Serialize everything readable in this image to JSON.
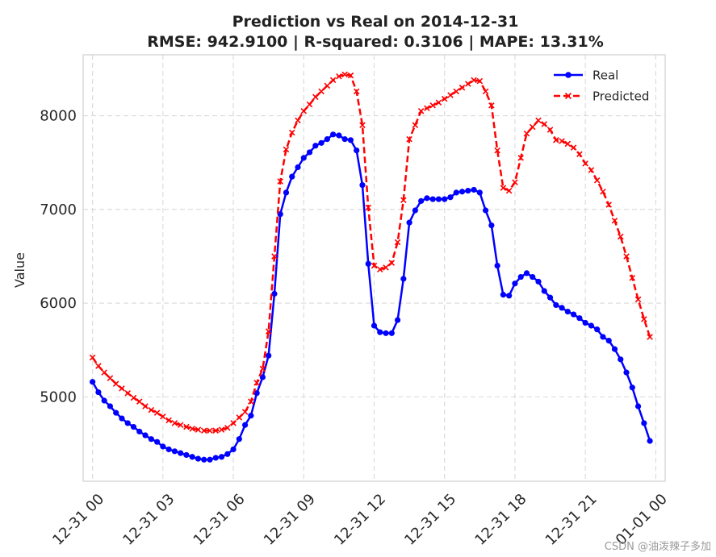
{
  "chart_data": {
    "type": "line",
    "title": "Prediction vs Real on 2014-12-31",
    "subtitle": "RMSE: 942.9100 | R-squared: 0.3106 | MAPE: 13.31%",
    "xlabel": "",
    "ylabel": "Value",
    "xlim": [
      -0.4,
      24.4
    ],
    "ylim": [
      4100,
      8650
    ],
    "x_ticks": [
      0,
      3,
      6,
      9,
      12,
      15,
      18,
      21,
      24
    ],
    "x_tick_labels": [
      "12-31 00",
      "12-31 03",
      "12-31 06",
      "12-31 09",
      "12-31 12",
      "12-31 15",
      "12-31 18",
      "12-31 21",
      "01-01 00"
    ],
    "y_ticks": [
      5000,
      6000,
      7000,
      8000
    ],
    "y_tick_labels": [
      "5000",
      "6000",
      "7000",
      "8000"
    ],
    "grid": true,
    "legend_position": "top-right",
    "x": [
      0,
      0.25,
      0.5,
      0.75,
      1,
      1.25,
      1.5,
      1.75,
      2,
      2.25,
      2.5,
      2.75,
      3,
      3.25,
      3.5,
      3.75,
      4,
      4.25,
      4.5,
      4.75,
      5,
      5.25,
      5.5,
      5.75,
      6,
      6.25,
      6.5,
      6.75,
      7,
      7.25,
      7.5,
      7.75,
      8,
      8.25,
      8.5,
      8.75,
      9,
      9.25,
      9.5,
      9.75,
      10,
      10.25,
      10.5,
      10.75,
      11,
      11.25,
      11.5,
      11.75,
      12,
      12.25,
      12.5,
      12.75,
      13,
      13.25,
      13.5,
      13.75,
      14,
      14.25,
      14.5,
      14.75,
      15,
      15.25,
      15.5,
      15.75,
      16,
      16.25,
      16.5,
      16.75,
      17,
      17.25,
      17.5,
      17.75,
      18,
      18.25,
      18.5,
      18.75,
      19,
      19.25,
      19.5,
      19.75,
      20,
      20.25,
      20.5,
      20.75,
      21,
      21.25,
      21.5,
      21.75,
      22,
      22.25,
      22.5,
      22.75,
      23,
      23.25,
      23.5,
      23.75
    ],
    "series": [
      {
        "name": "Real",
        "color": "#0000ff",
        "marker": "circle",
        "line_style": "solid",
        "values": [
          5160,
          5050,
          4960,
          4900,
          4830,
          4770,
          4720,
          4680,
          4630,
          4590,
          4550,
          4520,
          4470,
          4440,
          4420,
          4400,
          4380,
          4360,
          4340,
          4330,
          4330,
          4350,
          4360,
          4390,
          4440,
          4550,
          4700,
          4800,
          5040,
          5210,
          5440,
          6100,
          6950,
          7180,
          7350,
          7450,
          7550,
          7610,
          7680,
          7710,
          7750,
          7800,
          7790,
          7750,
          7740,
          7630,
          7260,
          6420,
          5760,
          5690,
          5680,
          5680,
          5820,
          6260,
          6860,
          6990,
          7090,
          7120,
          7110,
          7110,
          7110,
          7130,
          7180,
          7190,
          7200,
          7210,
          7180,
          6990,
          6830,
          6400,
          6090,
          6080,
          6210,
          6280,
          6320,
          6280,
          6230,
          6130,
          6060,
          5980,
          5950,
          5910,
          5880,
          5840,
          5790,
          5760,
          5720,
          5640,
          5600,
          5510,
          5400,
          5260,
          5100,
          4900,
          4720,
          4530
        ]
      },
      {
        "name": "Predicted",
        "color": "#ff0000",
        "marker": "x",
        "line_style": "dashed",
        "values": [
          5420,
          5330,
          5260,
          5200,
          5140,
          5090,
          5040,
          4990,
          4950,
          4900,
          4860,
          4830,
          4790,
          4750,
          4720,
          4700,
          4680,
          4660,
          4650,
          4640,
          4640,
          4640,
          4650,
          4670,
          4720,
          4780,
          4840,
          4950,
          5150,
          5300,
          5700,
          6500,
          7300,
          7640,
          7820,
          7950,
          8050,
          8120,
          8200,
          8260,
          8320,
          8380,
          8420,
          8440,
          8430,
          8260,
          7900,
          7020,
          6400,
          6360,
          6380,
          6430,
          6650,
          7100,
          7750,
          7900,
          8050,
          8080,
          8110,
          8140,
          8180,
          8220,
          8260,
          8300,
          8340,
          8380,
          8370,
          8260,
          8110,
          7630,
          7230,
          7200,
          7290,
          7550,
          7810,
          7880,
          7950,
          7910,
          7850,
          7740,
          7730,
          7700,
          7660,
          7590,
          7490,
          7420,
          7310,
          7190,
          7050,
          6880,
          6710,
          6500,
          6270,
          6040,
          5830,
          5640
        ]
      }
    ]
  },
  "watermark": "CSDN @油泼辣子多加"
}
